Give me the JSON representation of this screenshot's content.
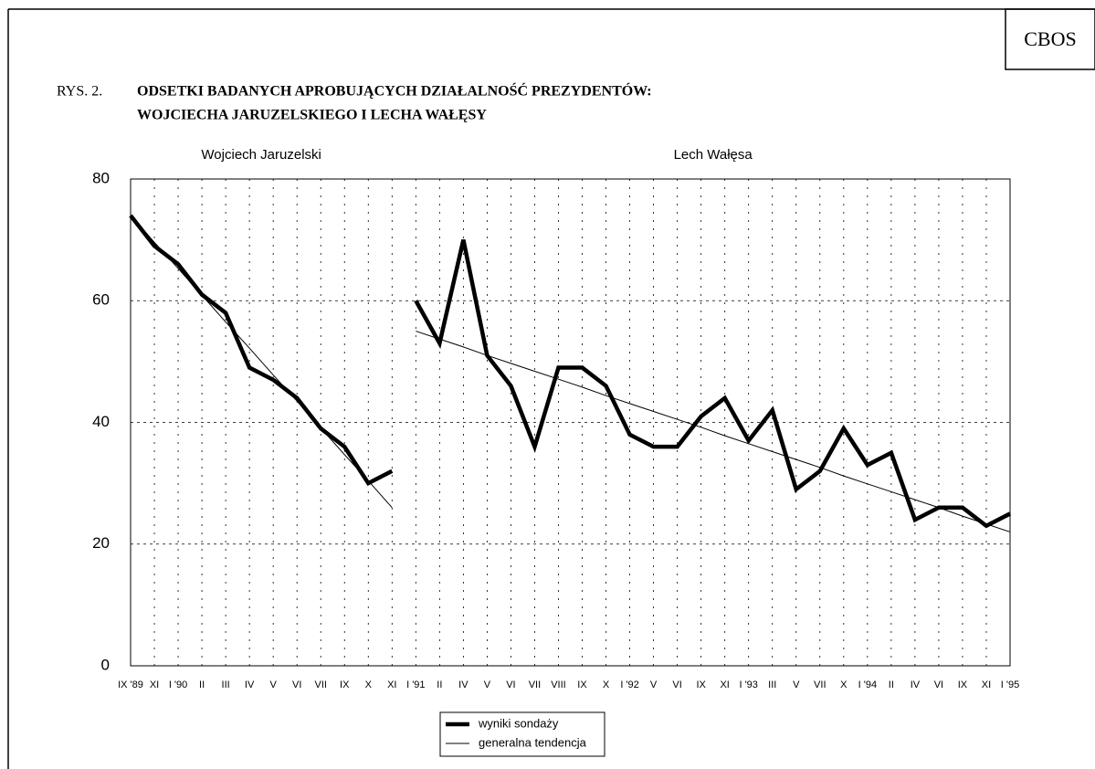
{
  "badge": "CBOS",
  "chart_data": {
    "type": "line",
    "figure_label": "RYS. 2.",
    "title_lines": [
      "ODSETKI BADANYCH APROBUJĄCYCH DZIAŁALNOŚĆ PREZYDENTÓW:",
      "WOJCIECHA JARUZELSKIEGO I LECHA WAŁĘSY"
    ],
    "ylim": [
      0,
      80
    ],
    "yticks": [
      0,
      20,
      40,
      60,
      80
    ],
    "grid": true,
    "legend": [
      {
        "name": "wyniki sondaży",
        "color": "#000000"
      },
      {
        "name": "generalna tendencja",
        "color": "#000000"
      }
    ],
    "sections": [
      {
        "label": "Wojciech Jaruzelski",
        "categories": [
          "IX '89",
          "XI",
          "I '90",
          "II",
          "III",
          "IV",
          "V",
          "VI",
          "VII",
          "IX",
          "X",
          "XI"
        ],
        "series": [
          {
            "values": [
              74,
              69,
              66,
              61,
              58,
              49,
              47,
              44,
              39,
              36,
              30,
              32
            ]
          },
          {
            "values": [
              74,
              69.6,
              65.3,
              60.9,
              56.5,
              52.2,
              47.8,
              43.5,
              39.1,
              34.7,
              30.4,
              26
            ]
          }
        ]
      },
      {
        "label": "Lech Wałęsa",
        "categories": [
          "I '91",
          "II",
          "IV",
          "V",
          "VI",
          "VII",
          "VIII",
          "IX",
          "X",
          "I '92",
          "V",
          "VI",
          "IX",
          "XI",
          "I '93",
          "III",
          "V",
          "VII",
          "X",
          "I '94",
          "II",
          "IV",
          "VI",
          "IX",
          "XI",
          "I '95"
        ],
        "series": [
          {
            "values": [
              60,
              53,
              70,
              51,
              46,
              36,
              49,
              49,
              46,
              38,
              36,
              36,
              41,
              44,
              37,
              42,
              29,
              32,
              39,
              33,
              35,
              24,
              26,
              26,
              23,
              25
            ]
          },
          {
            "values": [
              55,
              53.7,
              52.4,
              51,
              49.7,
              48.4,
              47.1,
              45.8,
              44.4,
              43.1,
              41.8,
              40.5,
              39.2,
              37.8,
              36.5,
              35.2,
              33.9,
              32.6,
              31.2,
              29.9,
              28.6,
              27.3,
              26,
              24.6,
              23.3,
              22
            ]
          }
        ]
      }
    ]
  }
}
